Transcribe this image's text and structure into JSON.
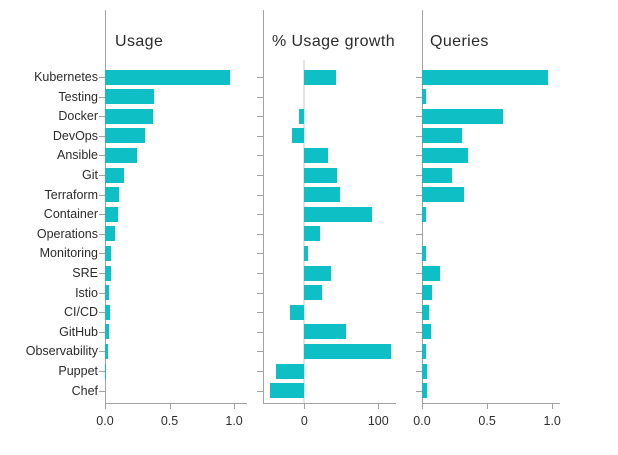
{
  "figure": {
    "background": "#ffffff",
    "bar_color": "#0ec0c6",
    "axis_color": "#a3a3a3",
    "text_color": "#2b2b2b",
    "zero_line_color": "#e4e4e4"
  },
  "chart_data": {
    "type": "bar",
    "orientation": "horizontal",
    "grid": false,
    "legend": false,
    "categories": [
      "Kubernetes",
      "Testing",
      "Docker",
      "DevOps",
      "Ansible",
      "Git",
      "Terraform",
      "Container",
      "Operations",
      "Monitoring",
      "SRE",
      "Istio",
      "CI/CD",
      "GitHub",
      "Observability",
      "Puppet",
      "Chef"
    ],
    "panels": [
      {
        "title": "Usage",
        "xlim": [
          0,
          1.1
        ],
        "ticks": [
          0,
          0.5,
          1
        ],
        "tick_labels": [
          "0.0",
          "0.5",
          "1.0"
        ],
        "zero_line": false,
        "values": [
          0.97,
          0.38,
          0.37,
          0.31,
          0.25,
          0.15,
          0.11,
          0.1,
          0.08,
          0.05,
          0.045,
          0.03,
          0.04,
          0.03,
          0.02,
          0.008,
          0.0
        ]
      },
      {
        "title": "% Usage growth",
        "xlim": [
          -56,
          124
        ],
        "ticks": [
          0,
          100
        ],
        "tick_labels": [
          "0",
          "100"
        ],
        "zero_line": true,
        "values": [
          43,
          0,
          -7,
          -17,
          32,
          44,
          48,
          92,
          21,
          5,
          36,
          24,
          -19,
          57,
          117,
          -38,
          -47
        ]
      },
      {
        "title": "Queries",
        "xlim": [
          0,
          1.06
        ],
        "ticks": [
          0,
          0.5,
          1
        ],
        "tick_labels": [
          "0.0",
          "0.5",
          "1.0"
        ],
        "zero_line": false,
        "values": [
          0.97,
          0.03,
          0.62,
          0.31,
          0.35,
          0.23,
          0.32,
          0.03,
          0.0,
          0.03,
          0.14,
          0.08,
          0.05,
          0.07,
          0.03,
          0.04,
          0.04
        ]
      }
    ]
  }
}
